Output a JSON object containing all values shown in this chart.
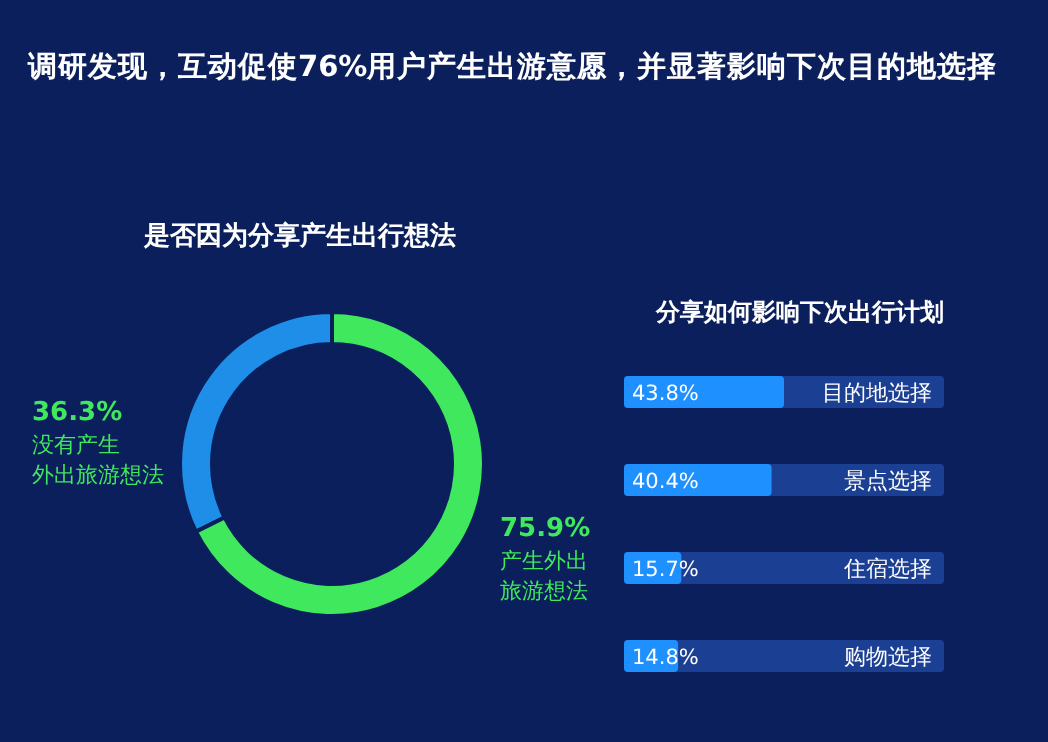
{
  "chart_data": [
    {
      "type": "donut",
      "title": "调研发现，互动促使76%用户产生出游意愿，并显著影响下次目的地选择",
      "subtitle": "是否因为分享产生出行想法",
      "categories": [
        "没有产生外出旅游想法",
        "产生外出旅游想法"
      ],
      "values": [
        36.3,
        75.9
      ],
      "colors": [
        "#1e8ee8",
        "#3fe85c"
      ],
      "value_labels": [
        "36.3%",
        "75.9%"
      ]
    },
    {
      "type": "bar",
      "orientation": "horizontal",
      "title": "分享如何影响下次出行计划",
      "categories": [
        "目的地选择",
        "景点选择",
        "住宿选择",
        "购物选择"
      ],
      "values": [
        43.8,
        40.4,
        15.7,
        14.8
      ],
      "color": "#1e90ff",
      "value_labels": [
        "43.8%",
        "40.4%",
        "15.7%",
        "14.8%"
      ]
    }
  ]
}
